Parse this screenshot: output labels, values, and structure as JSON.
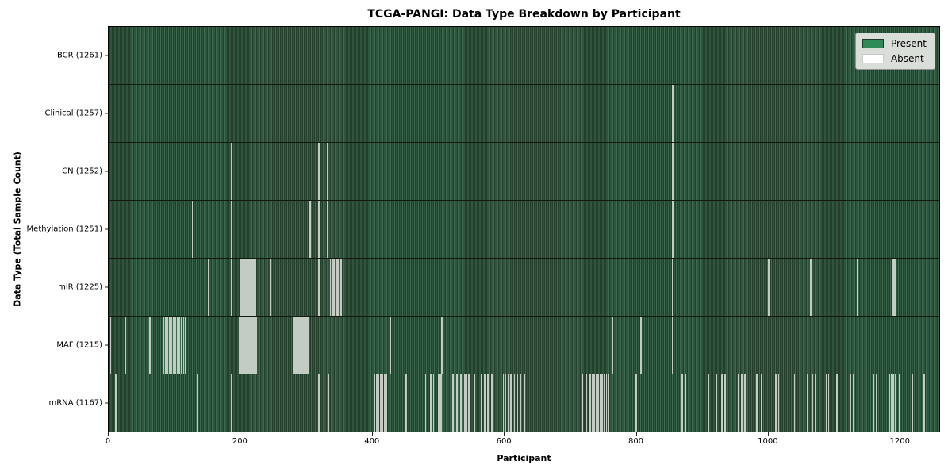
{
  "title": "TCGA-PANGI: Data Type Breakdown by Participant",
  "xlabel": "Participant",
  "ylabel": "Data Type (Total Sample Count)",
  "legend": {
    "present_label": "Present",
    "absent_label": "Absent"
  },
  "colors": {
    "present": "#2e8b57",
    "absent": "#ffffff",
    "stripe_light": "#3d6a51",
    "stripe_dark": "#24402d",
    "gap_line": "#c3ccc2",
    "legend_bg": "#d9ded9",
    "legend_swatch_edge": "#1d3a2a"
  },
  "chart_data": {
    "type": "heatmap",
    "title": "TCGA-PANGI: Data Type Breakdown by Participant",
    "xlabel": "Participant",
    "ylabel": "Data Type (Total Sample Count)",
    "legend_entries": [
      "Present",
      "Absent"
    ],
    "legend_position": "upper right",
    "total_participants": 1261,
    "x_ticks": [
      0,
      200,
      400,
      600,
      800,
      1000,
      1200
    ],
    "xlim": [
      0,
      1261
    ],
    "grid": false,
    "rows": [
      {
        "data_type": "BCR",
        "label": "BCR (1261)",
        "present_count": 1261,
        "absent_count": 0,
        "absent_indices": []
      },
      {
        "data_type": "Clinical",
        "label": "Clinical (1257)",
        "present_count": 1257,
        "absent_count": 4,
        "absent_indices": [
          18,
          268,
          855,
          856
        ]
      },
      {
        "data_type": "CN",
        "label": "CN (1252)",
        "present_count": 1252,
        "absent_count": 9,
        "absent_indices": [
          18,
          185,
          268,
          318,
          331,
          332,
          855,
          856,
          857
        ]
      },
      {
        "data_type": "Methylation",
        "label": "Methylation (1251)",
        "present_count": 1251,
        "absent_count": 10,
        "absent_indices": [
          18,
          126,
          185,
          268,
          305,
          318,
          331,
          332,
          855,
          856
        ]
      },
      {
        "data_type": "miR",
        "label": "miR (1225)",
        "present_count": 1225,
        "absent_count": 36,
        "absent_indices": [
          18,
          150,
          185,
          200,
          202,
          204,
          206,
          208,
          210,
          212,
          214,
          216,
          218,
          220,
          222,
          244,
          268,
          318,
          336,
          338,
          340,
          342,
          344,
          346,
          348,
          350,
          352,
          855,
          1001,
          1065,
          1136,
          1189,
          1190,
          1191,
          1192,
          1193
        ]
      },
      {
        "data_type": "MAF",
        "label": "MAF (1215)",
        "present_count": 1215,
        "absent_count": 46,
        "absent_indices": [
          2,
          25,
          62,
          83,
          86,
          89,
          92,
          95,
          98,
          101,
          104,
          107,
          110,
          113,
          116,
          198,
          200,
          202,
          204,
          206,
          208,
          210,
          212,
          214,
          216,
          218,
          220,
          222,
          224,
          280,
          282,
          284,
          286,
          288,
          290,
          292,
          294,
          296,
          298,
          300,
          302,
          427,
          505,
          764,
          807,
          855
        ]
      },
      {
        "data_type": "mRNA",
        "label": "mRNA (1167)",
        "present_count": 1167,
        "absent_count": 94,
        "absent_indices": [
          10,
          18,
          134,
          185,
          268,
          318,
          333,
          385,
          403,
          406,
          409,
          412,
          415,
          418,
          421,
          451,
          480,
          484,
          488,
          492,
          496,
          500,
          504,
          522,
          525,
          528,
          531,
          534,
          540,
          543,
          546,
          555,
          560,
          565,
          570,
          575,
          581,
          598,
          602,
          606,
          610,
          615,
          620,
          625,
          630,
          718,
          725,
          730,
          733,
          736,
          739,
          742,
          745,
          748,
          752,
          755,
          758,
          800,
          870,
          875,
          880,
          910,
          915,
          922,
          930,
          935,
          955,
          960,
          965,
          983,
          990,
          1008,
          1012,
          1016,
          1040,
          1055,
          1060,
          1068,
          1072,
          1089,
          1092,
          1105,
          1126,
          1130,
          1160,
          1165,
          1185,
          1187,
          1189,
          1191,
          1193,
          1200,
          1219,
          1237
        ]
      }
    ]
  }
}
